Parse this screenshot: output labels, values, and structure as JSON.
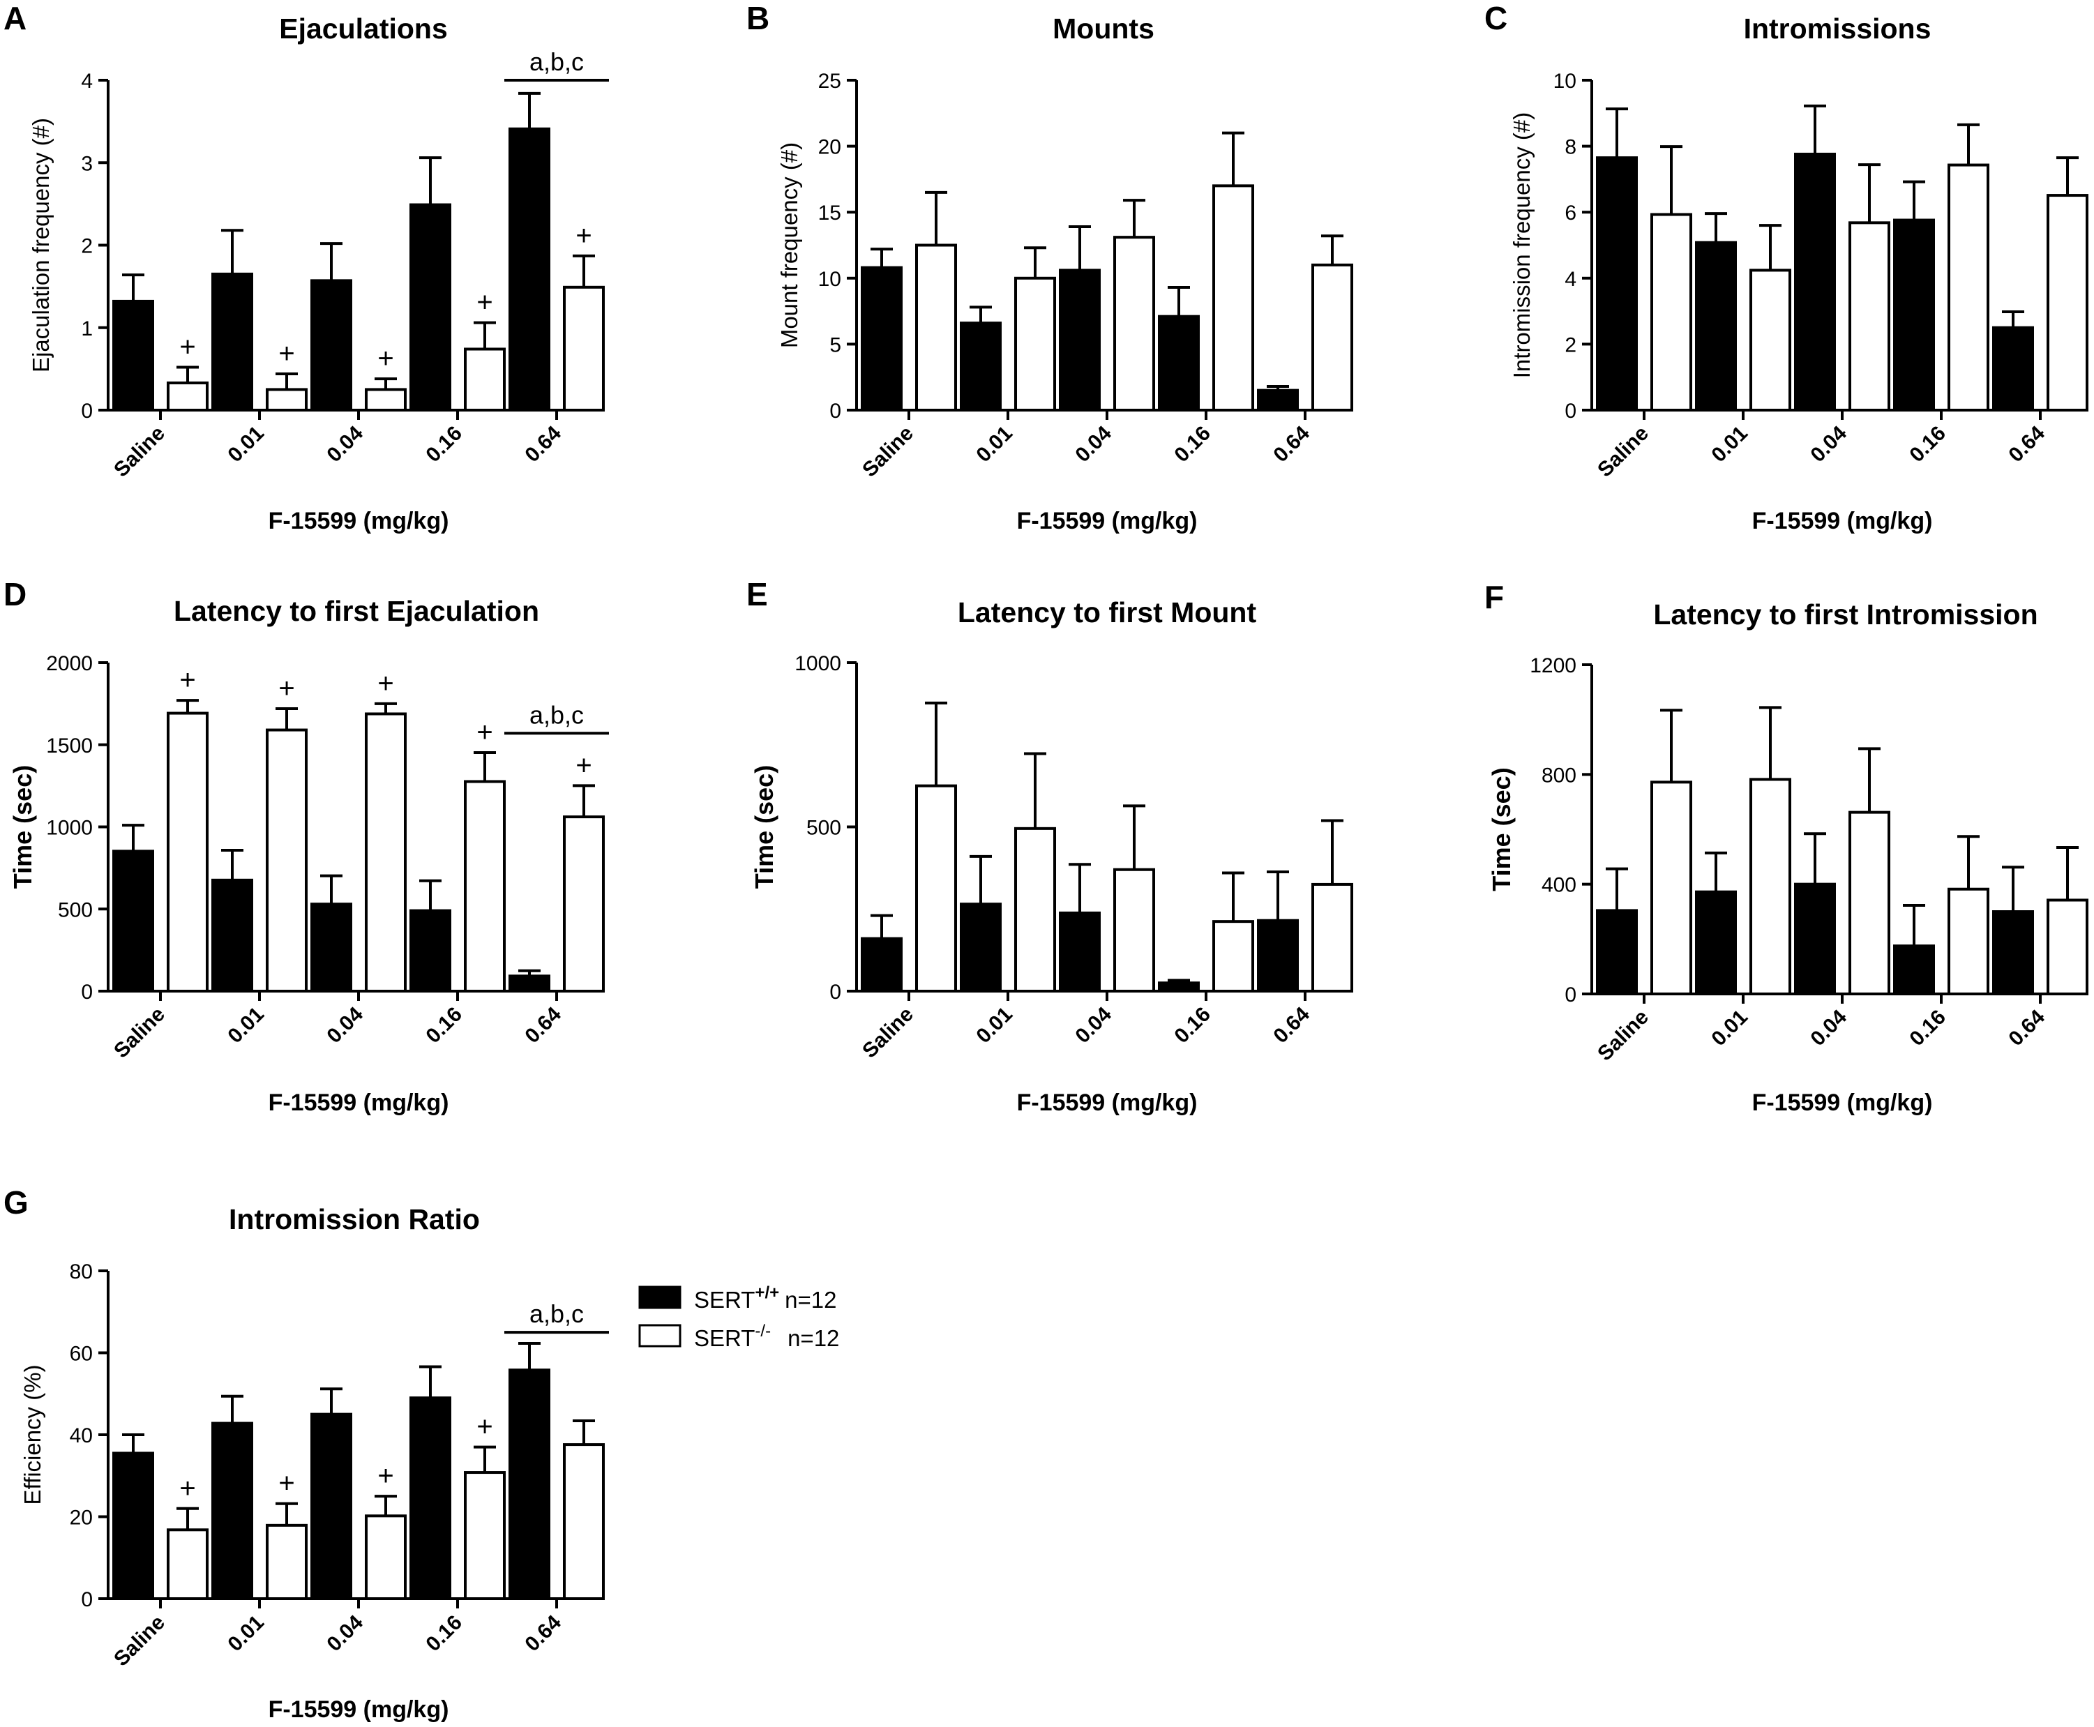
{
  "figure": {
    "legend": {
      "series_a": {
        "name": "SERT",
        "superscript": "+/+",
        "n_label": "n=12",
        "fill": "#000000"
      },
      "series_b": {
        "name": "SERT",
        "superscript": "-/-",
        "n_label": "n=12",
        "fill": "#ffffff"
      }
    }
  },
  "chart_data": [
    {
      "panel": "A",
      "type": "bar",
      "title": "Ejaculations",
      "ylabel": "Ejaculation frequency (#)",
      "xlabel": "F-15599 (mg/kg)",
      "categories": [
        "Saline",
        "0.01",
        "0.04",
        "0.16",
        "0.64"
      ],
      "ylim": [
        0,
        4
      ],
      "yticks": [
        "0",
        "1",
        "2",
        "3",
        "4"
      ],
      "series": [
        {
          "name": "SERT+/+",
          "values": [
            1.32,
            1.65,
            1.57,
            2.49,
            3.41
          ],
          "errors": [
            0.32,
            0.53,
            0.45,
            0.57,
            0.43
          ]
        },
        {
          "name": "SERT-/-",
          "values": [
            0.33,
            0.25,
            0.25,
            0.74,
            1.49
          ],
          "errors": [
            0.19,
            0.19,
            0.13,
            0.32,
            0.38
          ]
        }
      ],
      "markers": [
        {
          "series": 1,
          "index": 0,
          "text": "+"
        },
        {
          "series": 1,
          "index": 1,
          "text": "+"
        },
        {
          "series": 1,
          "index": 2,
          "text": "+"
        },
        {
          "series": 1,
          "index": 3,
          "text": "+"
        },
        {
          "series": 1,
          "index": 4,
          "text": "+"
        }
      ],
      "significance": {
        "index": 4,
        "text": "a,b,c",
        "value": 4.0
      }
    },
    {
      "panel": "B",
      "type": "bar",
      "title": "Mounts",
      "ylabel": "Mount frequency (#)",
      "xlabel": "F-15599 (mg/kg)",
      "categories": [
        "Saline",
        "0.01",
        "0.04",
        "0.16",
        "0.64"
      ],
      "ylim": [
        0,
        25
      ],
      "yticks": [
        "0",
        "5",
        "10",
        "15",
        "20",
        "25"
      ],
      "series": [
        {
          "name": "SERT+/+",
          "values": [
            10.8,
            6.6,
            10.6,
            7.1,
            1.5
          ],
          "errors": [
            1.4,
            1.2,
            3.3,
            2.2,
            0.3
          ]
        },
        {
          "name": "SERT-/-",
          "values": [
            12.5,
            10.0,
            13.1,
            17.0,
            11.0
          ],
          "errors": [
            4.0,
            2.3,
            2.8,
            4.0,
            2.2
          ]
        }
      ],
      "markers": [],
      "significance": null
    },
    {
      "panel": "C",
      "type": "bar",
      "title": "Intromissions",
      "ylabel": "Intromission frequency (#)",
      "xlabel": "F-15599 (mg/kg)",
      "categories": [
        "Saline",
        "0.01",
        "0.04",
        "0.16",
        "0.64"
      ],
      "ylim": [
        0,
        10
      ],
      "yticks": [
        "0",
        "2",
        "4",
        "6",
        "8",
        "10"
      ],
      "series": [
        {
          "name": "SERT+/+",
          "values": [
            7.65,
            5.08,
            7.76,
            5.76,
            2.5
          ],
          "errors": [
            1.48,
            0.88,
            1.46,
            1.16,
            0.48
          ]
        },
        {
          "name": "SERT-/-",
          "values": [
            5.93,
            4.24,
            5.68,
            7.43,
            6.51
          ],
          "errors": [
            2.06,
            1.36,
            1.76,
            1.22,
            1.14
          ]
        }
      ],
      "markers": [],
      "significance": null
    },
    {
      "panel": "D",
      "type": "bar",
      "title": "Latency to first Ejaculation",
      "ylabel": "Time (sec)",
      "xlabel": "F-15599 (mg/kg)",
      "categories": [
        "Saline",
        "0.01",
        "0.04",
        "0.16",
        "0.64"
      ],
      "ylim": [
        0,
        2000
      ],
      "yticks": [
        "0",
        "500",
        "1000",
        "1500",
        "2000"
      ],
      "series": [
        {
          "name": "SERT+/+",
          "values": [
            852,
            676,
            530,
            490,
            92
          ],
          "errors": [
            158,
            182,
            172,
            182,
            32
          ]
        },
        {
          "name": "SERT-/-",
          "values": [
            1692,
            1590,
            1688,
            1276,
            1061
          ],
          "errors": [
            78,
            130,
            62,
            176,
            190
          ]
        }
      ],
      "markers": [
        {
          "series": 1,
          "index": 0,
          "text": "+"
        },
        {
          "series": 1,
          "index": 1,
          "text": "+"
        },
        {
          "series": 1,
          "index": 2,
          "text": "+"
        },
        {
          "series": 1,
          "index": 3,
          "text": "+"
        },
        {
          "series": 1,
          "index": 4,
          "text": "+"
        }
      ],
      "significance": {
        "index": 4,
        "text": "a,b,c",
        "value": 1570
      }
    },
    {
      "panel": "E",
      "type": "bar",
      "title": "Latency to first Mount",
      "ylabel": "Time (sec)",
      "xlabel": "F-15599 (mg/kg)",
      "categories": [
        "Saline",
        "0.01",
        "0.04",
        "0.16",
        "0.64"
      ],
      "ylim": [
        0,
        1000
      ],
      "yticks": [
        "0",
        "500",
        "1000"
      ],
      "series": [
        {
          "name": "SERT+/+",
          "values": [
            160,
            265,
            238,
            25,
            215
          ],
          "errors": [
            70,
            145,
            148,
            8,
            148
          ]
        },
        {
          "name": "SERT-/-",
          "values": [
            625,
            495,
            370,
            212,
            325
          ],
          "errors": [
            252,
            228,
            194,
            148,
            194
          ]
        }
      ],
      "markers": [],
      "significance": null
    },
    {
      "panel": "F",
      "type": "bar",
      "title": "Latency to first Intromission",
      "ylabel": "Time (sec)",
      "xlabel": "F-15599 (mg/kg)",
      "categories": [
        "Saline",
        "0.01",
        "0.04",
        "0.16",
        "0.64"
      ],
      "ylim": [
        0,
        1200
      ],
      "yticks": [
        "0",
        "400",
        "800",
        "1200"
      ],
      "series": [
        {
          "name": "SERT+/+",
          "values": [
            304,
            372,
            400,
            175,
            300
          ],
          "errors": [
            152,
            142,
            184,
            148,
            162
          ]
        },
        {
          "name": "SERT-/-",
          "values": [
            772,
            782,
            662,
            382,
            342
          ],
          "errors": [
            262,
            262,
            232,
            192,
            192
          ]
        }
      ],
      "markers": [],
      "significance": null
    },
    {
      "panel": "G",
      "type": "bar",
      "title": "Intromission Ratio",
      "ylabel": "Efficiency  (%)",
      "xlabel": "F-15599 (mg/kg)",
      "categories": [
        "Saline",
        "0.01",
        "0.04",
        "0.16",
        "0.64"
      ],
      "ylim": [
        0,
        80
      ],
      "yticks": [
        "0",
        "20",
        "40",
        "60",
        "80"
      ],
      "series": [
        {
          "name": "SERT+/+",
          "values": [
            35.5,
            42.8,
            45.0,
            49.0,
            55.8
          ],
          "errors": [
            4.5,
            6.6,
            6.2,
            7.6,
            6.5
          ]
        },
        {
          "name": "SERT-/-",
          "values": [
            16.8,
            17.9,
            20.2,
            30.8,
            37.6
          ],
          "errors": [
            5.2,
            5.3,
            4.8,
            6.2,
            5.8
          ]
        }
      ],
      "markers": [
        {
          "series": 1,
          "index": 0,
          "text": "+"
        },
        {
          "series": 1,
          "index": 1,
          "text": "+"
        },
        {
          "series": 1,
          "index": 2,
          "text": "+"
        },
        {
          "series": 1,
          "index": 3,
          "text": "+"
        }
      ],
      "significance": {
        "index": 4,
        "text": "a,b,c",
        "value": 65
      }
    }
  ]
}
